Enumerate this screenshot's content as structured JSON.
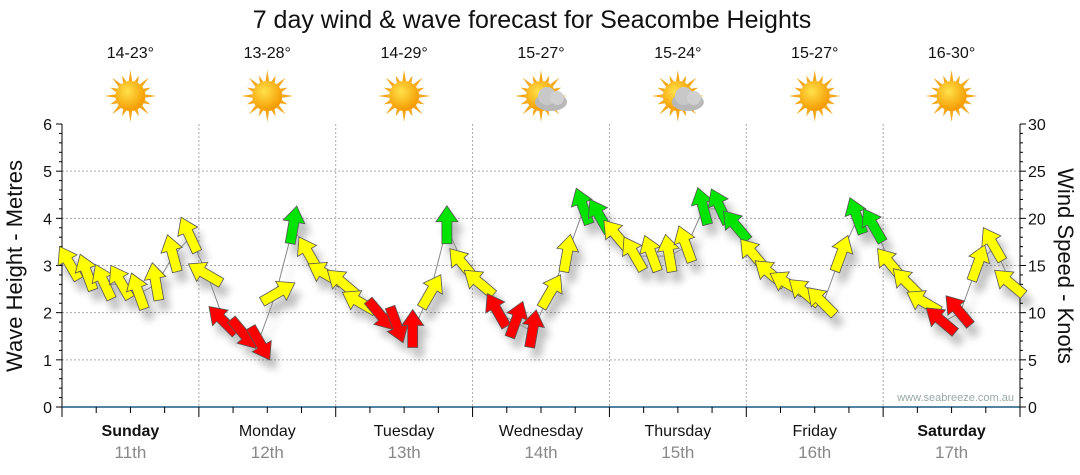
{
  "chart_data": {
    "type": "scatter",
    "title": "7 day wind & wave forecast for Seacombe Heights",
    "ylabel_left": "Wave Height - Metres",
    "ylabel_right": "Wind Speed - Knots",
    "ylim_left": [
      0,
      6
    ],
    "ylim_right": [
      0,
      30
    ],
    "yticks_left": [
      "0",
      "1",
      "2",
      "3",
      "4",
      "5",
      "6"
    ],
    "yticks_right": [
      "0",
      "5",
      "10",
      "15",
      "20",
      "25",
      "30"
    ],
    "grid": true,
    "days": [
      {
        "name": "Sunday",
        "date": "11th",
        "bold": true,
        "temp": "14-23°",
        "icon": "sun"
      },
      {
        "name": "Monday",
        "date": "12th",
        "bold": false,
        "temp": "13-28°",
        "icon": "sun"
      },
      {
        "name": "Tuesday",
        "date": "13th",
        "bold": false,
        "temp": "14-29°",
        "icon": "sun"
      },
      {
        "name": "Wednesday",
        "date": "14th",
        "bold": false,
        "temp": "15-27°",
        "icon": "partly-cloudy"
      },
      {
        "name": "Thursday",
        "date": "15th",
        "bold": false,
        "temp": "15-24°",
        "icon": "partly-cloudy"
      },
      {
        "name": "Friday",
        "date": "16th",
        "bold": false,
        "temp": "15-27°",
        "icon": "sun"
      },
      {
        "name": "Saturday",
        "date": "17th",
        "bold": true,
        "temp": "16-30°",
        "icon": "sun"
      }
    ],
    "wind_series": {
      "name": "Wind speed (knots) every 3 hours",
      "values": [
        15,
        14,
        13,
        13,
        12,
        13,
        16,
        18,
        14,
        9,
        8,
        7,
        12,
        19,
        16,
        14,
        13,
        11,
        10,
        9,
        8,
        12,
        19,
        15,
        13,
        10,
        9,
        8,
        12,
        16,
        21,
        20,
        18,
        16,
        16,
        16,
        17,
        21,
        21,
        19,
        16,
        14,
        13,
        12,
        11,
        16,
        20,
        19,
        15,
        13,
        11,
        9,
        10,
        15,
        17,
        13
      ],
      "direction_deg": [
        330,
        340,
        335,
        330,
        340,
        350,
        345,
        335,
        300,
        315,
        140,
        150,
        60,
        10,
        330,
        300,
        310,
        300,
        140,
        160,
        0,
        30,
        0,
        320,
        310,
        330,
        20,
        10,
        30,
        10,
        340,
        330,
        320,
        330,
        340,
        350,
        340,
        345,
        335,
        320,
        320,
        310,
        300,
        310,
        315,
        20,
        340,
        330,
        320,
        315,
        300,
        310,
        320,
        20,
        330,
        310
      ],
      "color_thresholds": {
        "red_below": 11,
        "green_above": 18
      }
    },
    "colors": {
      "light": "#ff0000",
      "moderate": "#ffff00",
      "strong": "#00e400"
    },
    "watermark": "www.seabreeze.com.au"
  }
}
